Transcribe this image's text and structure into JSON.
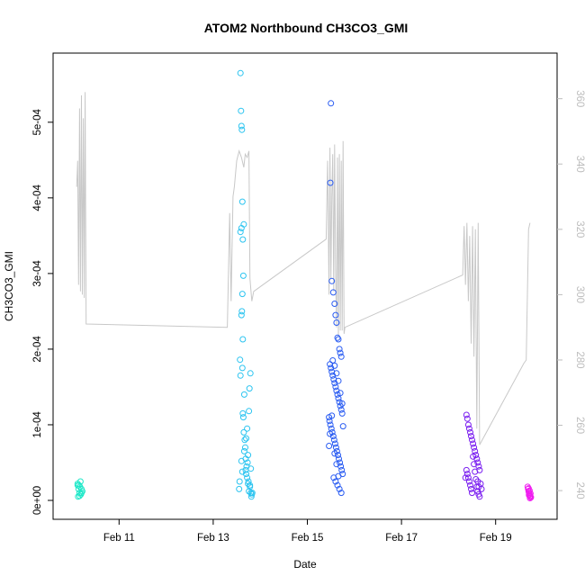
{
  "chart_data": {
    "type": "scatter",
    "title": "ATOM2 Northbound CH3CO3_GMI",
    "xlabel": "Date",
    "ylabel": "CH3CO3_GMI",
    "xlim": [
      10.0,
      20.0
    ],
    "ylim": [
      0,
      0.00057
    ],
    "y2lim": [
      237,
      369
    ],
    "x_ticks": [
      {
        "value": 11,
        "label": "Feb 11"
      },
      {
        "value": 13,
        "label": "Feb 13"
      },
      {
        "value": 15,
        "label": "Feb 15"
      },
      {
        "value": 17,
        "label": "Feb 17"
      },
      {
        "value": 19,
        "label": "Feb 19"
      }
    ],
    "y_ticks": [
      {
        "value": 0,
        "label": "0e+00"
      },
      {
        "value": 0.0001,
        "label": "1e-04"
      },
      {
        "value": 0.0002,
        "label": "2e-04"
      },
      {
        "value": 0.0003,
        "label": "3e-04"
      },
      {
        "value": 0.0004,
        "label": "4e-04"
      },
      {
        "value": 0.0005,
        "label": "5e-04"
      }
    ],
    "y2_ticks": [
      {
        "value": 240,
        "label": "240"
      },
      {
        "value": 260,
        "label": "260"
      },
      {
        "value": 280,
        "label": "280"
      },
      {
        "value": 300,
        "label": "300"
      },
      {
        "value": 320,
        "label": "320"
      },
      {
        "value": 340,
        "label": "340"
      },
      {
        "value": 360,
        "label": "360"
      }
    ],
    "grid": false,
    "line_color": "#c8c8c8",
    "series": [
      {
        "color": "#1ee8c8",
        "x": [
          10.12,
          10.14,
          10.16,
          10.18,
          10.2,
          10.13,
          10.15,
          10.17,
          10.19,
          10.22,
          10.12,
          10.16,
          10.2
        ],
        "y": [
          2e-05,
          1.5e-05,
          1e-05,
          2.5e-05,
          1e-05,
          5e-06,
          2e-05,
          1.8e-05,
          8e-06,
          1.2e-05,
          2.2e-05,
          6e-06,
          1.5e-05
        ]
      },
      {
        "color": "#2cc4f0",
        "x": [
          13.58,
          13.59,
          13.6,
          13.61,
          13.62,
          13.6,
          13.58,
          13.63,
          13.65,
          13.64,
          13.62,
          13.6,
          13.61,
          13.63,
          13.57,
          13.58,
          13.66,
          13.62,
          13.63,
          13.64,
          13.65,
          13.67,
          13.68,
          13.69,
          13.7,
          13.72,
          13.75,
          13.78,
          13.8,
          13.82,
          13.79,
          13.77,
          13.76,
          13.74,
          13.71,
          13.73,
          13.81,
          13.83,
          13.69,
          13.66,
          13.7,
          13.72,
          13.74,
          13.76,
          13.78,
          13.8,
          13.55,
          13.56,
          13.6,
          13.62
        ],
        "y": [
          0.000565,
          0.000515,
          0.000495,
          0.00049,
          0.000395,
          0.00036,
          0.000355,
          0.000345,
          0.000365,
          0.000297,
          0.000273,
          0.000245,
          0.00025,
          0.000213,
          0.000186,
          0.000165,
          0.00014,
          0.000175,
          0.000115,
          0.00011,
          9e-05,
          8e-05,
          7e-05,
          4e-05,
          3.5e-05,
          3e-05,
          2.5e-05,
          2e-05,
          1e-05,
          8e-06,
          0.000168,
          0.000148,
          0.000118,
          6e-05,
          4.5e-05,
          5e-05,
          5e-06,
          1e-05,
          5.5e-05,
          6.5e-05,
          8.2e-05,
          9.5e-05,
          2.2e-05,
          1.2e-05,
          1.8e-05,
          4.2e-05,
          1.5e-05,
          2.5e-05,
          5.2e-05,
          3.8e-05
        ]
      },
      {
        "color": "#2a5cf2",
        "x": [
          15.5,
          15.49,
          15.52,
          15.55,
          15.58,
          15.6,
          15.62,
          15.64,
          15.66,
          15.68,
          15.7,
          15.72,
          15.48,
          15.5,
          15.52,
          15.54,
          15.56,
          15.58,
          15.6,
          15.62,
          15.64,
          15.66,
          15.68,
          15.7,
          15.72,
          15.74,
          15.46,
          15.47,
          15.49,
          15.51,
          15.53,
          15.55,
          15.57,
          15.59,
          15.61,
          15.63,
          15.65,
          15.67,
          15.69,
          15.71,
          15.73,
          15.75,
          15.56,
          15.6,
          15.64,
          15.68,
          15.72,
          15.54,
          15.58,
          15.62,
          15.66,
          15.7,
          15.74,
          15.52,
          15.76,
          15.48,
          15.46,
          15.58,
          15.62,
          15.66
        ],
        "y": [
          0.000525,
          0.00042,
          0.00029,
          0.000275,
          0.00026,
          0.000245,
          0.000235,
          0.000215,
          0.000213,
          0.0002,
          0.000195,
          0.00019,
          0.00018,
          0.000175,
          0.00017,
          0.000165,
          0.00016,
          0.000155,
          0.00015,
          0.000145,
          0.00014,
          0.000135,
          0.00013,
          0.000125,
          0.00012,
          0.000115,
          0.00011,
          0.000105,
          0.0001,
          9.5e-05,
          9e-05,
          8.5e-05,
          8e-05,
          7.5e-05,
          7e-05,
          6.5e-05,
          6e-05,
          5.5e-05,
          5e-05,
          4.5e-05,
          4e-05,
          3.5e-05,
          3e-05,
          2.5e-05,
          2e-05,
          1.5e-05,
          1e-05,
          0.000185,
          0.000178,
          0.000168,
          0.000158,
          0.000142,
          0.000128,
          0.000112,
          9.8e-05,
          8.8e-05,
          7.2e-05,
          6.2e-05,
          4.8e-05,
          3.2e-05
        ]
      },
      {
        "color": "#7a1ef0",
        "x": [
          18.38,
          18.4,
          18.42,
          18.44,
          18.46,
          18.48,
          18.5,
          18.52,
          18.54,
          18.56,
          18.58,
          18.6,
          18.62,
          18.64,
          18.66,
          18.4,
          18.42,
          18.44,
          18.46,
          18.48,
          18.5,
          18.52,
          18.54,
          18.56,
          18.58,
          18.6,
          18.62,
          18.64,
          18.66,
          18.68,
          18.36,
          18.38,
          18.7,
          18.62,
          18.64
        ],
        "y": [
          0.000113,
          0.000108,
          0.0001,
          9.5e-05,
          9e-05,
          8.5e-05,
          8e-05,
          7.5e-05,
          7e-05,
          6.5e-05,
          6e-05,
          5.5e-05,
          5e-05,
          4.5e-05,
          4e-05,
          3.5e-05,
          3e-05,
          2.5e-05,
          2e-05,
          1.5e-05,
          1e-05,
          5.8e-05,
          4.8e-05,
          3.8e-05,
          2.8e-05,
          1.8e-05,
          1.2e-05,
          8e-06,
          5e-06,
          2.2e-05,
          3e-05,
          4e-05,
          1.5e-05,
          2.5e-05,
          1.8e-05
        ]
      },
      {
        "color": "#f01ef0",
        "x": [
          19.68,
          19.69,
          19.7,
          19.71,
          19.72,
          19.73,
          19.74,
          19.75,
          19.7,
          19.72,
          19.74,
          19.71,
          19.73
        ],
        "y": [
          1.8e-05,
          1.5e-05,
          1.2e-05,
          1e-05,
          8e-06,
          6e-06,
          5e-06,
          4e-06,
          1.6e-05,
          1.3e-05,
          9e-06,
          7e-06,
          3e-06
        ]
      }
    ],
    "line": {
      "x": [
        10.1,
        10.12,
        10.14,
        10.16,
        10.18,
        10.2,
        10.22,
        10.24,
        10.26,
        10.28,
        10.3,
        13.3,
        13.35,
        13.38,
        13.42,
        13.45,
        13.5,
        13.55,
        13.6,
        13.65,
        13.68,
        13.72,
        13.76,
        13.78,
        13.82,
        13.86,
        15.4,
        15.43,
        15.46,
        15.48,
        15.5,
        15.52,
        15.54,
        15.56,
        15.58,
        15.6,
        15.62,
        15.64,
        15.66,
        15.68,
        15.7,
        15.72,
        15.74,
        15.76,
        15.78,
        15.8,
        18.3,
        18.33,
        18.36,
        18.39,
        18.42,
        18.45,
        18.48,
        18.51,
        18.54,
        18.57,
        18.6,
        18.63,
        18.66,
        19.6,
        19.65,
        19.7,
        19.73
      ],
      "y2": [
        333,
        341,
        303,
        357,
        301,
        361,
        300,
        354,
        299,
        362,
        291,
        290,
        325,
        298,
        330,
        333,
        341,
        344,
        342,
        339,
        343,
        342,
        344,
        305,
        298,
        301,
        317,
        341,
        300,
        345,
        305,
        330,
        343,
        301,
        346,
        308,
        290,
        342,
        287,
        343,
        289,
        341,
        289,
        347,
        288,
        290,
        306,
        321,
        303,
        322,
        298,
        318,
        285,
        321,
        281,
        320,
        259,
        322,
        254,
        279,
        280,
        320,
        322
      ]
    }
  }
}
